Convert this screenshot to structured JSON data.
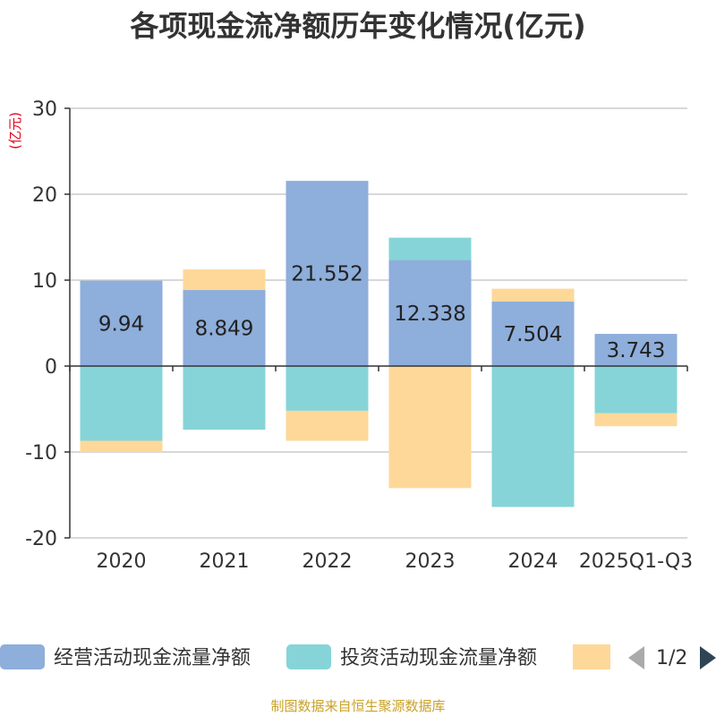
{
  "chart_data": {
    "type": "bar",
    "stacked": true,
    "title": "各项现金流净额历年变化情况(亿元)",
    "ylabel": "(亿元)",
    "ylim": [
      -20,
      30
    ],
    "yticks": [
      30,
      20,
      10,
      0,
      -10,
      -20
    ],
    "categories": [
      "2020",
      "2021",
      "2022",
      "2023",
      "2024",
      "2025Q1-Q3"
    ],
    "series": [
      {
        "name": "经营活动现金流量净额",
        "color": "#8eaedb",
        "values": [
          9.94,
          8.849,
          21.552,
          12.338,
          7.504,
          3.743
        ],
        "labels": [
          "9.94",
          "8.849",
          "21.552",
          "12.338",
          "7.504",
          "3.743"
        ]
      },
      {
        "name": "投资活动现金流量净额",
        "color": "#86d4d8",
        "values": [
          -8.7,
          -7.4,
          -5.2,
          2.6,
          -16.4,
          -5.5
        ]
      },
      {
        "name": "",
        "color": "#fdd899",
        "values": [
          -1.3,
          2.4,
          -3.5,
          -14.2,
          1.5,
          -1.5
        ]
      }
    ],
    "legend_position": "bottom"
  },
  "legend": {
    "page": "1/2"
  },
  "footer": {
    "source": "制图数据来自恒生聚源数据库"
  }
}
